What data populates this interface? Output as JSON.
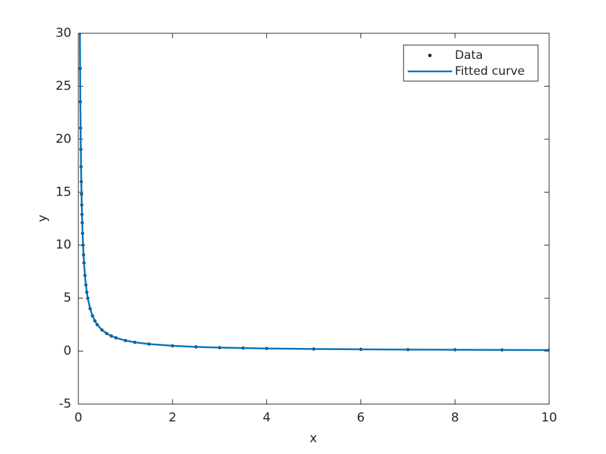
{
  "chart_data": {
    "type": "line",
    "x_label": "x",
    "y_label": "y",
    "x": [
      0.0333,
      0.0375,
      0.0425,
      0.0475,
      0.0525,
      0.0575,
      0.0625,
      0.0675,
      0.0725,
      0.0775,
      0.0825,
      0.09,
      0.1,
      0.11,
      0.12,
      0.14,
      0.16,
      0.18,
      0.2,
      0.25,
      0.3,
      0.35,
      0.4,
      0.5,
      0.6,
      0.7,
      0.8,
      1,
      1.2,
      1.5,
      2,
      2.5,
      3,
      3.5,
      4,
      5,
      6,
      7,
      8,
      9,
      10
    ],
    "series": [
      {
        "name": "Data",
        "color": "#262626",
        "marker": true,
        "values": [
          30.03,
          26.67,
          23.53,
          21.05,
          19.05,
          17.39,
          16,
          14.81,
          13.79,
          12.9,
          12.12,
          11.11,
          10,
          9.09,
          8.33,
          7.14,
          6.25,
          5.56,
          5,
          4,
          3.33,
          2.86,
          2.5,
          2,
          1.67,
          1.43,
          1.25,
          1,
          0.83,
          0.67,
          0.5,
          0.4,
          0.33,
          0.29,
          0.25,
          0.2,
          0.17,
          0.14,
          0.13,
          0.11,
          0.1
        ]
      },
      {
        "name": "Fitted curve",
        "color": "#0072bd",
        "marker": false,
        "values": [
          30.03,
          26.67,
          23.53,
          21.05,
          19.05,
          17.39,
          16,
          14.81,
          13.79,
          12.9,
          12.12,
          11.11,
          10,
          9.09,
          8.33,
          7.14,
          6.25,
          5.56,
          5,
          4,
          3.33,
          2.86,
          2.5,
          2,
          1.67,
          1.43,
          1.25,
          1,
          0.83,
          0.67,
          0.5,
          0.4,
          0.33,
          0.29,
          0.25,
          0.2,
          0.17,
          0.14,
          0.13,
          0.11,
          0.1
        ]
      }
    ],
    "xlim": [
      0,
      10
    ],
    "xticks": [
      0,
      2,
      4,
      6,
      8,
      10
    ],
    "ylim": [
      -5,
      30
    ],
    "yticks": [
      -5,
      0,
      5,
      10,
      15,
      20,
      25,
      30
    ],
    "legend": "top-right",
    "grid": false
  }
}
